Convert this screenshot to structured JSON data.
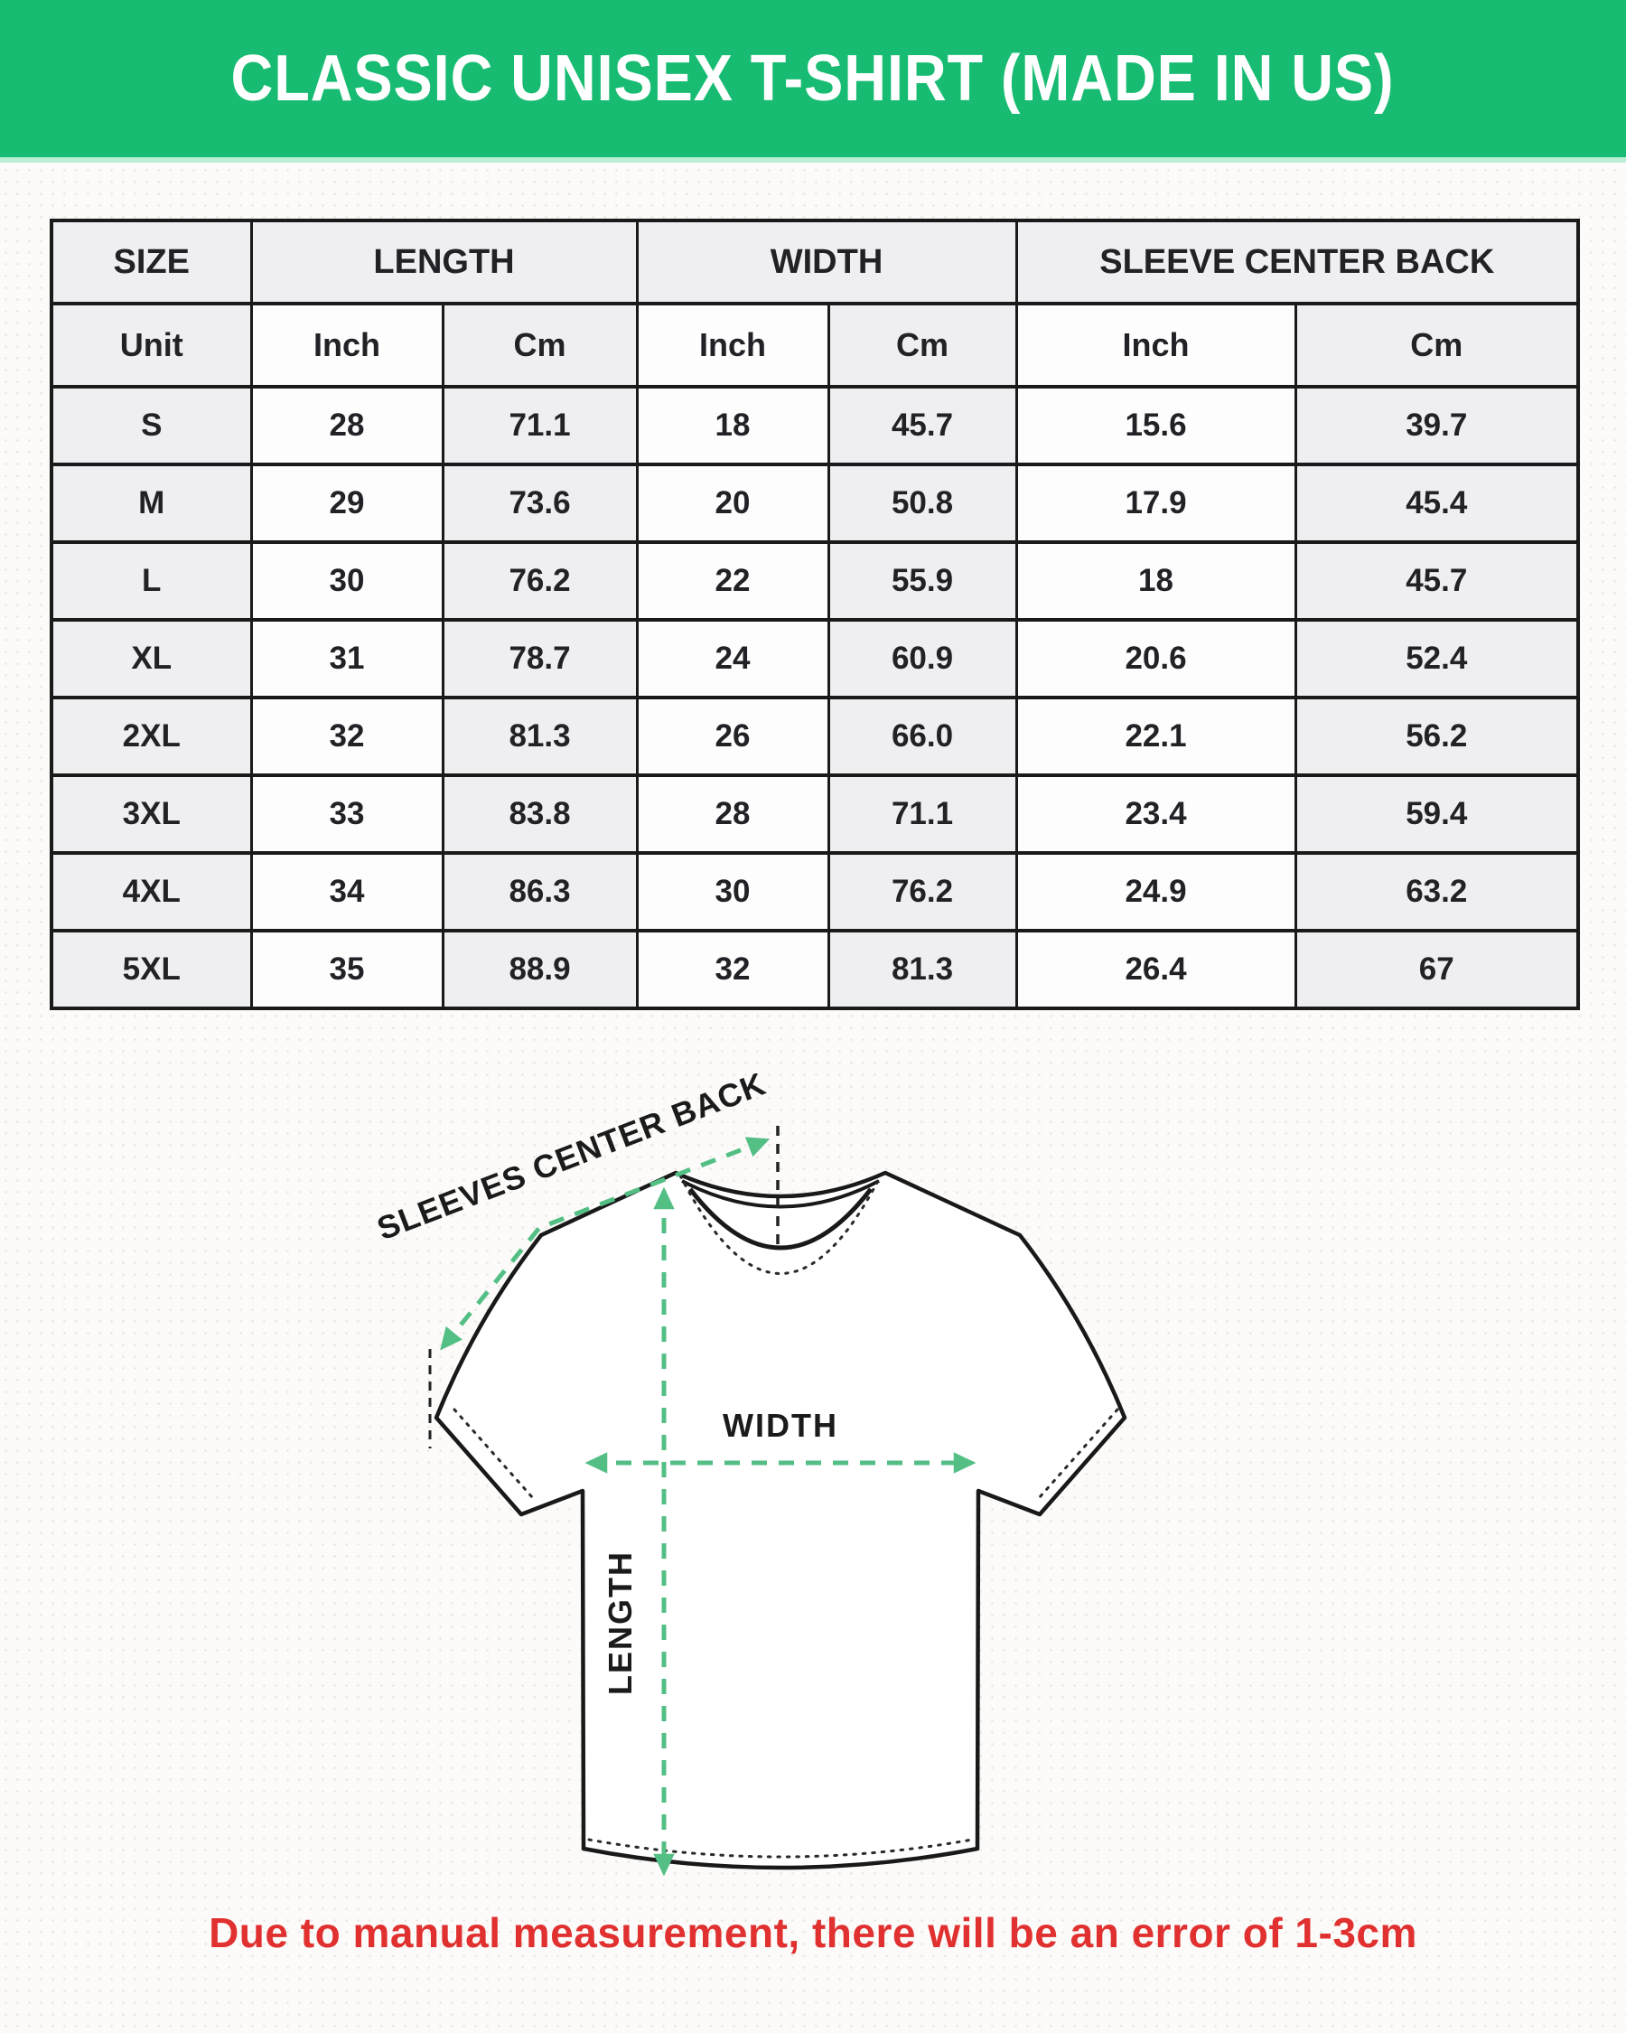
{
  "header": {
    "title": "CLASSIC UNISEX T-SHIRT (MADE IN US)",
    "bg_color": "#17bc72",
    "text_color": "#ffffff"
  },
  "size_table": {
    "group_headers": [
      "SIZE",
      "LENGTH",
      "WIDTH",
      "SLEEVE CENTER BACK"
    ],
    "unit_headers": [
      "Unit",
      "Inch",
      "Cm",
      "Inch",
      "Cm",
      "Inch",
      "Cm"
    ],
    "rows": [
      [
        "S",
        "28",
        "71.1",
        "18",
        "45.7",
        "15.6",
        "39.7"
      ],
      [
        "M",
        "29",
        "73.6",
        "20",
        "50.8",
        "17.9",
        "45.4"
      ],
      [
        "L",
        "30",
        "76.2",
        "22",
        "55.9",
        "18",
        "45.7"
      ],
      [
        "XL",
        "31",
        "78.7",
        "24",
        "60.9",
        "20.6",
        "52.4"
      ],
      [
        "2XL",
        "32",
        "81.3",
        "26",
        "66.0",
        "22.1",
        "56.2"
      ],
      [
        "3XL",
        "33",
        "83.8",
        "28",
        "71.1",
        "23.4",
        "59.4"
      ],
      [
        "4XL",
        "34",
        "86.3",
        "30",
        "76.2",
        "24.9",
        "63.2"
      ],
      [
        "5XL",
        "35",
        "88.9",
        "32",
        "81.3",
        "26.4",
        "67"
      ]
    ]
  },
  "diagram": {
    "label_sleeves_center_back": "SLEEVES CENTER BACK",
    "label_width": "WIDTH",
    "label_length": "LENGTH",
    "accent_color": "#53bf85",
    "outline_color": "#191919"
  },
  "footnote": {
    "text": "Due to manual measurement, there will be an error of 1-3cm",
    "color": "#e0302f"
  }
}
